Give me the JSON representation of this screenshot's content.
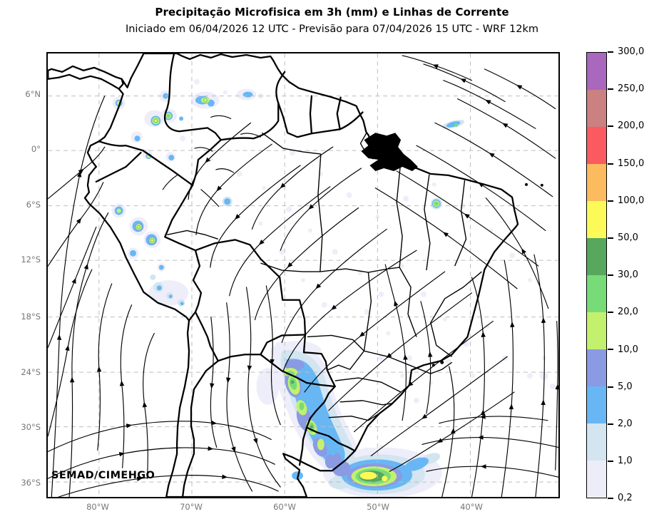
{
  "title": "Precipitação Microfisica em 3h (mm) e Linhas de Corrente",
  "subtitle": "Iniciado em 06/04/2026 12 UTC - Previsão para 07/04/2026 15 UTC - WRF 12km",
  "watermark": "SEMAD/CIMEHGO",
  "axes": {
    "lat_ticks": [
      "6°N",
      "0°",
      "6°S",
      "12°S",
      "18°S",
      "24°S",
      "30°S",
      "36°S"
    ],
    "lon_ticks": [
      "80°W",
      "70°W",
      "60°W",
      "50°W",
      "40°W"
    ]
  },
  "colorbar": {
    "units": "mm",
    "levels": [
      0.2,
      1,
      2,
      5,
      10,
      20,
      30,
      50,
      100,
      150,
      200,
      250,
      300
    ],
    "tick_labels": [
      "300,0",
      "250,0",
      "200,0",
      "150,0",
      "100,0",
      "50,0",
      "30,0",
      "20,0",
      "10,0",
      "5,0",
      "2,0",
      "1,0",
      "0,2"
    ],
    "colors": [
      "#ededfa",
      "#d2e5f0",
      "#68b7f4",
      "#8a9ae3",
      "#c3f16d",
      "#77dc78",
      "#57a75e",
      "#fbfa58",
      "#fbbb5e",
      "#fb5b60",
      "#cb8081",
      "#a967be"
    ]
  },
  "chart_data": {
    "type": "heatmap",
    "title": "Precipitação Microfisica em 3h (mm) e Linhas de Corrente",
    "subtitle": "Iniciado em 06/04/2026 12 UTC - Previsão para 07/04/2026 15 UTC - WRF 12km",
    "model": "WRF 12km",
    "init_time": "06/04/2026 12 UTC",
    "valid_time": "07/04/2026 15 UTC",
    "units": "mm / 3h",
    "region": "South America",
    "xlabel_ticks": [
      "80°W",
      "70°W",
      "60°W",
      "50°W",
      "40°W"
    ],
    "ylabel_ticks": [
      "6°N",
      "0°",
      "6°S",
      "12°S",
      "18°S",
      "24°S",
      "30°S",
      "36°S"
    ],
    "shading_levels_mm": [
      0.2,
      1,
      2,
      5,
      10,
      20,
      30,
      50,
      100,
      150,
      200,
      250,
      300
    ],
    "shading_colors": [
      "#ededfa",
      "#d2e5f0",
      "#68b7f4",
      "#8a9ae3",
      "#c3f16d",
      "#77dc78",
      "#57a75e",
      "#fbfa58",
      "#fbbb5e",
      "#fb5b60",
      "#cb8081",
      "#a967be"
    ],
    "overlay": "black streamlines with arrowheads (linhas de corrente)",
    "grid": "dashed gray lat/lon gridlines every 6 deg lat / 10 deg lon",
    "legend_position": "vertical colorbar, right side",
    "precip_features": [
      {
        "region": "Colombia / NW Amazon convective cells",
        "near": "74°W 4°N",
        "peak_mm": "30-50"
      },
      {
        "region": "Eastern Andes of Peru cells",
        "near": "76°W 8°S",
        "peak_mm": "30-50"
      },
      {
        "region": "Small cells NE Brazil",
        "near": "43°W 2°S and 44°W 10°S",
        "peak_mm": "10-30"
      },
      {
        "region": "Rain band Paraguay / S Brazil / NE Argentina",
        "near": "57°W 24°S to 55°W 30°S",
        "peak_mm": "30-50"
      },
      {
        "region": "Strong cell S Atlantic off Uruguay / Rio Grande do Sul",
        "near": "50°W 36°S",
        "peak_mm": "50-100"
      },
      {
        "region": "Widespread drizzle specks",
        "near": "scattered over continent",
        "peak_mm": "0.2-1"
      }
    ]
  }
}
